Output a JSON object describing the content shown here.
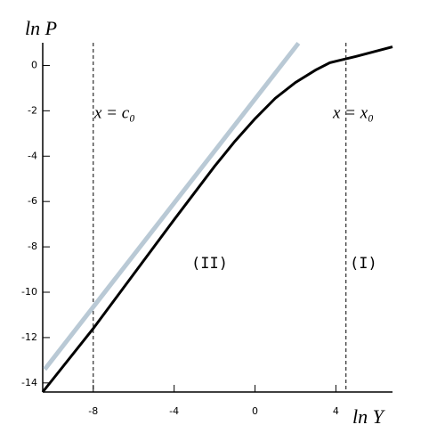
{
  "chart_data": {
    "type": "line",
    "xlabel": "ln Y",
    "ylabel": "ln P",
    "xlim": [
      -10.5,
      6.8
    ],
    "ylim": [
      -14.4,
      1
    ],
    "xticks": [
      -8,
      -4,
      0,
      4
    ],
    "yticks": [
      0,
      -2,
      -4,
      -6,
      -8,
      -10,
      -12,
      -14
    ],
    "vlines": [
      -8,
      4.5
    ],
    "annotations": [
      "x = c₀",
      "x = x₀",
      "(II)",
      "(I)"
    ],
    "series": [
      {
        "color": "#b9c9d5",
        "x": [
          -10.4,
          2.15
        ],
        "values": [
          -13.4,
          0.98
        ]
      },
      {
        "color": "#000000",
        "x": [
          -10.5,
          -8,
          -6,
          -4,
          -2,
          -1,
          0,
          1,
          2,
          3,
          3.7,
          5,
          6.8
        ],
        "values": [
          -14.4,
          -11.6,
          -9.2,
          -6.8,
          -4.45,
          -3.35,
          -2.35,
          -1.45,
          -0.75,
          -0.2,
          0.12,
          0.4,
          0.82
        ]
      }
    ]
  }
}
